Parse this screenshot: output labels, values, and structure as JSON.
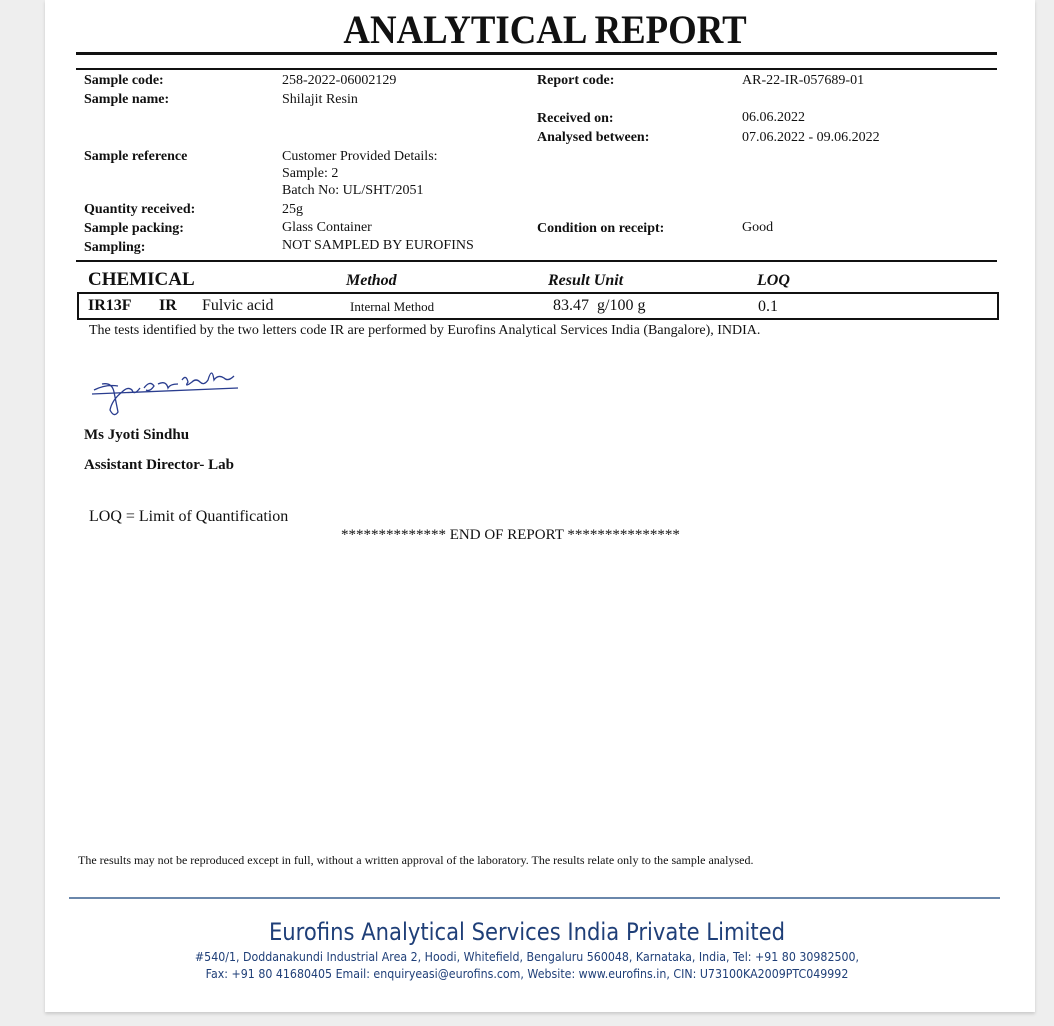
{
  "title": "ANALYTICAL REPORT",
  "details": {
    "sample_code": {
      "label": "Sample code:",
      "value": "258-2022-06002129"
    },
    "sample_name": {
      "label": "Sample name:",
      "value": "Shilajit Resin"
    },
    "report_code": {
      "label": "Report code:",
      "value": "AR-22-IR-057689-01"
    },
    "received_on": {
      "label": "Received on:",
      "value": "06.06.2022"
    },
    "analysed_between": {
      "label": "Analysed between:",
      "value": "07.06.2022 - 09.06.2022"
    },
    "sample_reference": {
      "label": "Sample reference",
      "lines": [
        "Customer Provided Details:",
        "Sample: 2",
        "Batch No: UL/SHT/2051"
      ]
    },
    "quantity_received": {
      "label": "Quantity received:",
      "value": "25g"
    },
    "sample_packing": {
      "label": "Sample packing:",
      "value": "Glass Container"
    },
    "condition_on_receipt": {
      "label": "Condition on receipt:",
      "value": "Good"
    },
    "sampling": {
      "label": "Sampling:",
      "value": "NOT SAMPLED BY EUROFINS"
    }
  },
  "results": {
    "section": "CHEMICAL",
    "headers": {
      "method": "Method",
      "result_unit": "Result Unit",
      "loq": "LOQ"
    },
    "rows": [
      {
        "code": "IR13F",
        "lab": "IR",
        "parameter": "Fulvic acid",
        "method": "Internal Method",
        "result": "83.47",
        "unit": "g/100 g",
        "loq": "0.1"
      }
    ],
    "note": "The tests identified by the two letters code IR are performed by Eurofins Analytical Services India (Bangalore), INDIA."
  },
  "signatory": {
    "signature_text": "Jyoti Sindhu",
    "name": "Ms Jyoti Sindhu",
    "title": "Assistant Director- Lab"
  },
  "loq_definition": "LOQ = Limit of Quantification",
  "end_of_report": "************** END OF REPORT ***************",
  "disclaimer": "The results may not be reproduced except in full, without a written approval of the laboratory. The results relate only to the sample analysed.",
  "footer": {
    "company": "Eurofins Analytical Services India Private Limited",
    "address_line1": "#540/1, Doddanakundi Industrial Area 2, Hoodi, Whitefield, Bengaluru 560048, Karnataka, India, Tel: +91 80 30982500,",
    "address_line2": "Fax: +91 80 41680405 Email: enquiryeasi@eurofins.com, Website: www.eurofins.in, CIN: U73100KA2009PTC049992",
    "color": "#1f3f78"
  }
}
